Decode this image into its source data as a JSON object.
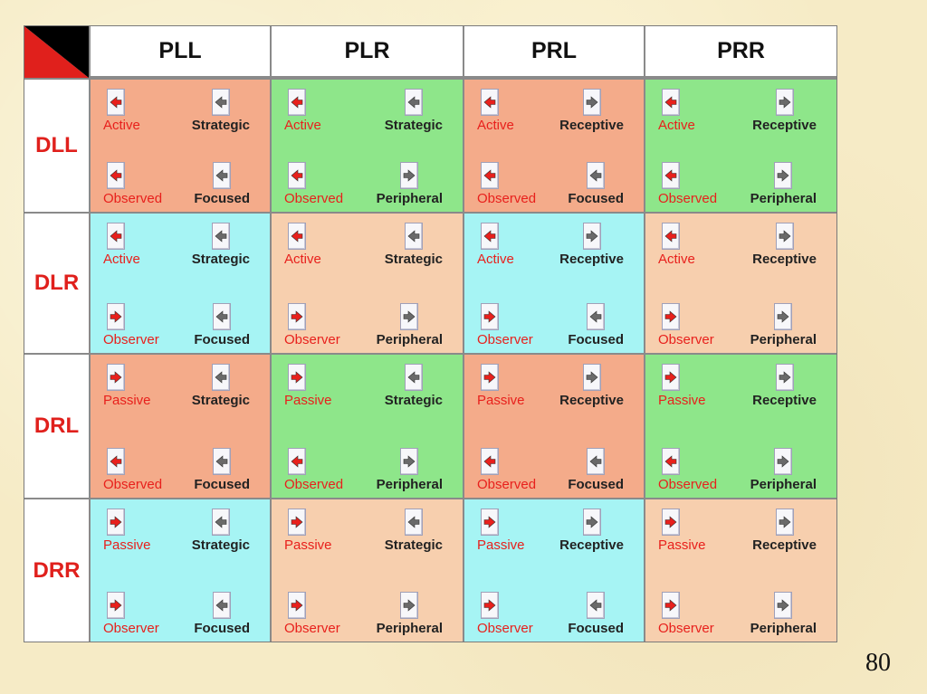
{
  "matrix": {
    "columns": [
      "PLL",
      "PLR",
      "PRL",
      "PRR"
    ],
    "rows": [
      "DLL",
      "DLR",
      "DRL",
      "DRR"
    ],
    "cells": [
      [
        {
          "color": "salmon",
          "tl": "Active",
          "bl": "Observed",
          "tr": "Strategic",
          "br": "Focused",
          "icons": {
            "tl": "left",
            "bl": "left",
            "tr": "left",
            "br": "left"
          }
        },
        {
          "color": "green",
          "tl": "Active",
          "bl": "Observed",
          "tr": "Strategic",
          "br": "Peripheral",
          "icons": {
            "tl": "left",
            "bl": "left",
            "tr": "left",
            "br": "right"
          }
        },
        {
          "color": "salmon",
          "tl": "Active",
          "bl": "Observed",
          "tr": "Receptive",
          "br": "Focused",
          "icons": {
            "tl": "left",
            "bl": "left",
            "tr": "right",
            "br": "left"
          }
        },
        {
          "color": "green",
          "tl": "Active",
          "bl": "Observed",
          "tr": "Receptive",
          "br": "Peripheral",
          "icons": {
            "tl": "left",
            "bl": "left",
            "tr": "right",
            "br": "right"
          }
        }
      ],
      [
        {
          "color": "cyan",
          "tl": "Active",
          "bl": "Observer",
          "tr": "Strategic",
          "br": "Focused",
          "icons": {
            "tl": "left",
            "bl": "right",
            "tr": "left",
            "br": "left"
          }
        },
        {
          "color": "peach",
          "tl": "Active",
          "bl": "Observer",
          "tr": "Strategic",
          "br": "Peripheral",
          "icons": {
            "tl": "left",
            "bl": "right",
            "tr": "left",
            "br": "right"
          }
        },
        {
          "color": "cyan",
          "tl": "Active",
          "bl": "Observer",
          "tr": "Receptive",
          "br": "Focused",
          "icons": {
            "tl": "left",
            "bl": "right",
            "tr": "right",
            "br": "left"
          }
        },
        {
          "color": "peach",
          "tl": "Active",
          "bl": "Observer",
          "tr": "Receptive",
          "br": "Peripheral",
          "icons": {
            "tl": "left",
            "bl": "right",
            "tr": "right",
            "br": "right"
          }
        }
      ],
      [
        {
          "color": "salmon",
          "tl": "Passive",
          "bl": "Observed",
          "tr": "Strategic",
          "br": "Focused",
          "icons": {
            "tl": "right",
            "bl": "left",
            "tr": "left",
            "br": "left"
          }
        },
        {
          "color": "green",
          "tl": "Passive",
          "bl": "Observed",
          "tr": "Strategic",
          "br": "Peripheral",
          "icons": {
            "tl": "right",
            "bl": "left",
            "tr": "left",
            "br": "right"
          }
        },
        {
          "color": "salmon",
          "tl": "Passive",
          "bl": "Observed",
          "tr": "Receptive",
          "br": "Focused",
          "icons": {
            "tl": "right",
            "bl": "left",
            "tr": "right",
            "br": "left"
          }
        },
        {
          "color": "green",
          "tl": "Passive",
          "bl": "Observed",
          "tr": "Receptive",
          "br": "Peripheral",
          "icons": {
            "tl": "right",
            "bl": "left",
            "tr": "right",
            "br": "right"
          }
        }
      ],
      [
        {
          "color": "cyan",
          "tl": "Passive",
          "bl": "Observer",
          "tr": "Strategic",
          "br": "Focused",
          "icons": {
            "tl": "right",
            "bl": "right",
            "tr": "left",
            "br": "left"
          }
        },
        {
          "color": "peach",
          "tl": "Passive",
          "bl": "Observer",
          "tr": "Strategic",
          "br": "Peripheral",
          "icons": {
            "tl": "right",
            "bl": "right",
            "tr": "left",
            "br": "right"
          }
        },
        {
          "color": "cyan",
          "tl": "Passive",
          "bl": "Observer",
          "tr": "Receptive",
          "br": "Focused",
          "icons": {
            "tl": "right",
            "bl": "right",
            "tr": "right",
            "br": "left"
          }
        },
        {
          "color": "peach",
          "tl": "Passive",
          "bl": "Observer",
          "tr": "Receptive",
          "br": "Peripheral",
          "icons": {
            "tl": "right",
            "bl": "right",
            "tr": "right",
            "br": "right"
          }
        }
      ]
    ]
  },
  "colors": {
    "salmon": "#f4ab8a",
    "green": "#8ee68a",
    "cyan": "#a6f4f4",
    "peach": "#f7cfae",
    "arrow_red": "#e8201c",
    "arrow_gray": "#6a6a6a",
    "corner_red": "#e0201c",
    "corner_black": "#000000"
  },
  "page_number": "80"
}
